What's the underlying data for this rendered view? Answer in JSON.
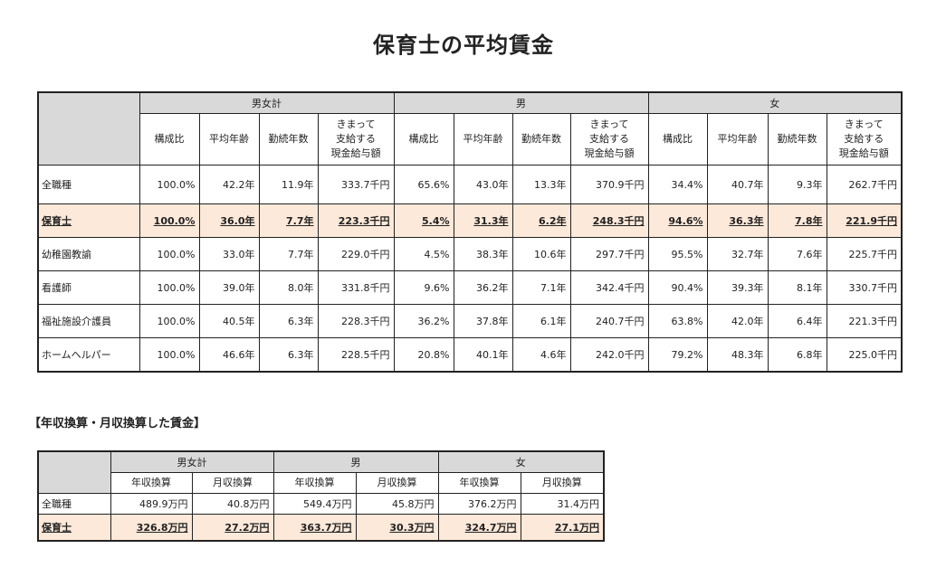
{
  "title": "保育士の平均賃金",
  "table1": {
    "groups": [
      "男女計",
      "男",
      "女"
    ],
    "columns": [
      "構成比",
      "平均年齢",
      "勤続年数",
      "きまって\n支給する\n現金給与額"
    ],
    "rows": [
      {
        "label": "全職種",
        "highlight": false,
        "values": [
          "100.0%",
          "42.2年",
          "11.9年",
          "333.7千円",
          "65.6%",
          "43.0年",
          "13.3年",
          "370.9千円",
          "34.4%",
          "40.7年",
          "9.3年",
          "262.7千円"
        ]
      },
      {
        "label": "保育士",
        "highlight": true,
        "values": [
          "100.0%",
          "36.0年",
          "7.7年",
          "223.3千円",
          "5.4%",
          "31.3年",
          "6.2年",
          "248.3千円",
          "94.6%",
          "36.3年",
          "7.8年",
          "221.9千円"
        ]
      },
      {
        "label": "幼稚園教諭",
        "highlight": false,
        "values": [
          "100.0%",
          "33.0年",
          "7.7年",
          "229.0千円",
          "4.5%",
          "38.3年",
          "10.6年",
          "297.7千円",
          "95.5%",
          "32.7年",
          "7.6年",
          "225.7千円"
        ]
      },
      {
        "label": "看護師",
        "highlight": false,
        "values": [
          "100.0%",
          "39.0年",
          "8.0年",
          "331.8千円",
          "9.6%",
          "36.2年",
          "7.1年",
          "342.4千円",
          "90.4%",
          "39.3年",
          "8.1年",
          "330.7千円"
        ]
      },
      {
        "label": "福祉施設介護員",
        "highlight": false,
        "values": [
          "100.0%",
          "40.5年",
          "6.3年",
          "228.3千円",
          "36.2%",
          "37.8年",
          "6.1年",
          "240.7千円",
          "63.8%",
          "42.0年",
          "6.4年",
          "221.3千円"
        ]
      },
      {
        "label": "ホームヘルパー",
        "highlight": false,
        "values": [
          "100.0%",
          "46.6年",
          "6.3年",
          "228.5千円",
          "20.8%",
          "40.1年",
          "4.6年",
          "242.0千円",
          "79.2%",
          "48.3年",
          "6.8年",
          "225.0千円"
        ]
      }
    ]
  },
  "section2_title": "【年収換算・月収換算した賃金】",
  "table2": {
    "groups": [
      "男女計",
      "男",
      "女"
    ],
    "columns": [
      "年収換算",
      "月収換算"
    ],
    "rows": [
      {
        "label": "全職種",
        "highlight": false,
        "values": [
          "489.9万円",
          "40.8万円",
          "549.4万円",
          "45.8万円",
          "376.2万円",
          "31.4万円"
        ]
      },
      {
        "label": "保育士",
        "highlight": true,
        "values": [
          "326.8万円",
          "27.2万円",
          "363.7万円",
          "30.3万円",
          "324.7万円",
          "27.1万円"
        ]
      }
    ]
  }
}
